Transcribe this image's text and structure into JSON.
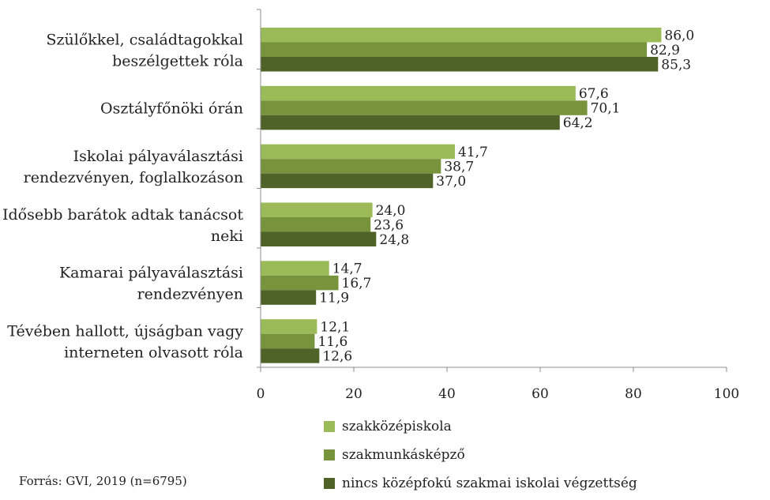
{
  "chart_data": {
    "type": "bar",
    "orientation": "horizontal",
    "categories": [
      [
        "Szülőkkel, családtagokkal",
        "beszélgettek róla"
      ],
      [
        "Osztályfőnöki órán"
      ],
      [
        "Iskolai pályaválasztási",
        "rendezvényen, foglalkozáson"
      ],
      [
        "Idősebb barátok adtak tanácsot",
        "neki"
      ],
      [
        "Kamarai pályaválasztási",
        "rendezvényen"
      ],
      [
        "Tévében hallott, újságban vagy",
        "interneten olvasott róla"
      ]
    ],
    "series": [
      {
        "name": "szakközépiskola",
        "color": "#9bbb59",
        "values": [
          86.0,
          67.6,
          41.7,
          24.0,
          14.7,
          12.1
        ],
        "labels": [
          "86,0",
          "67,6",
          "41,7",
          "24,0",
          "14,7",
          "12,1"
        ]
      },
      {
        "name": "szakmunkásképző",
        "color": "#77933c",
        "values": [
          82.9,
          70.1,
          38.7,
          23.6,
          16.7,
          11.6
        ],
        "labels": [
          "82,9",
          "70,1",
          "38,7",
          "23,6",
          "16,7",
          "11,6"
        ]
      },
      {
        "name": "nincs középfokú szakmai iskolai végzettség",
        "color": "#4f6228",
        "values": [
          85.3,
          64.2,
          37.0,
          24.8,
          11.9,
          12.6
        ],
        "labels": [
          "85,3",
          "64,2",
          "37,0",
          "24,8",
          "11,9",
          "12,6"
        ]
      }
    ],
    "xlim": [
      0,
      100
    ],
    "xticks": [
      "0",
      "20",
      "40",
      "60",
      "80",
      "100"
    ],
    "grid": false,
    "legend_position": "bottom"
  },
  "source": "Forrás: GVI, 2019 (n=6795)"
}
